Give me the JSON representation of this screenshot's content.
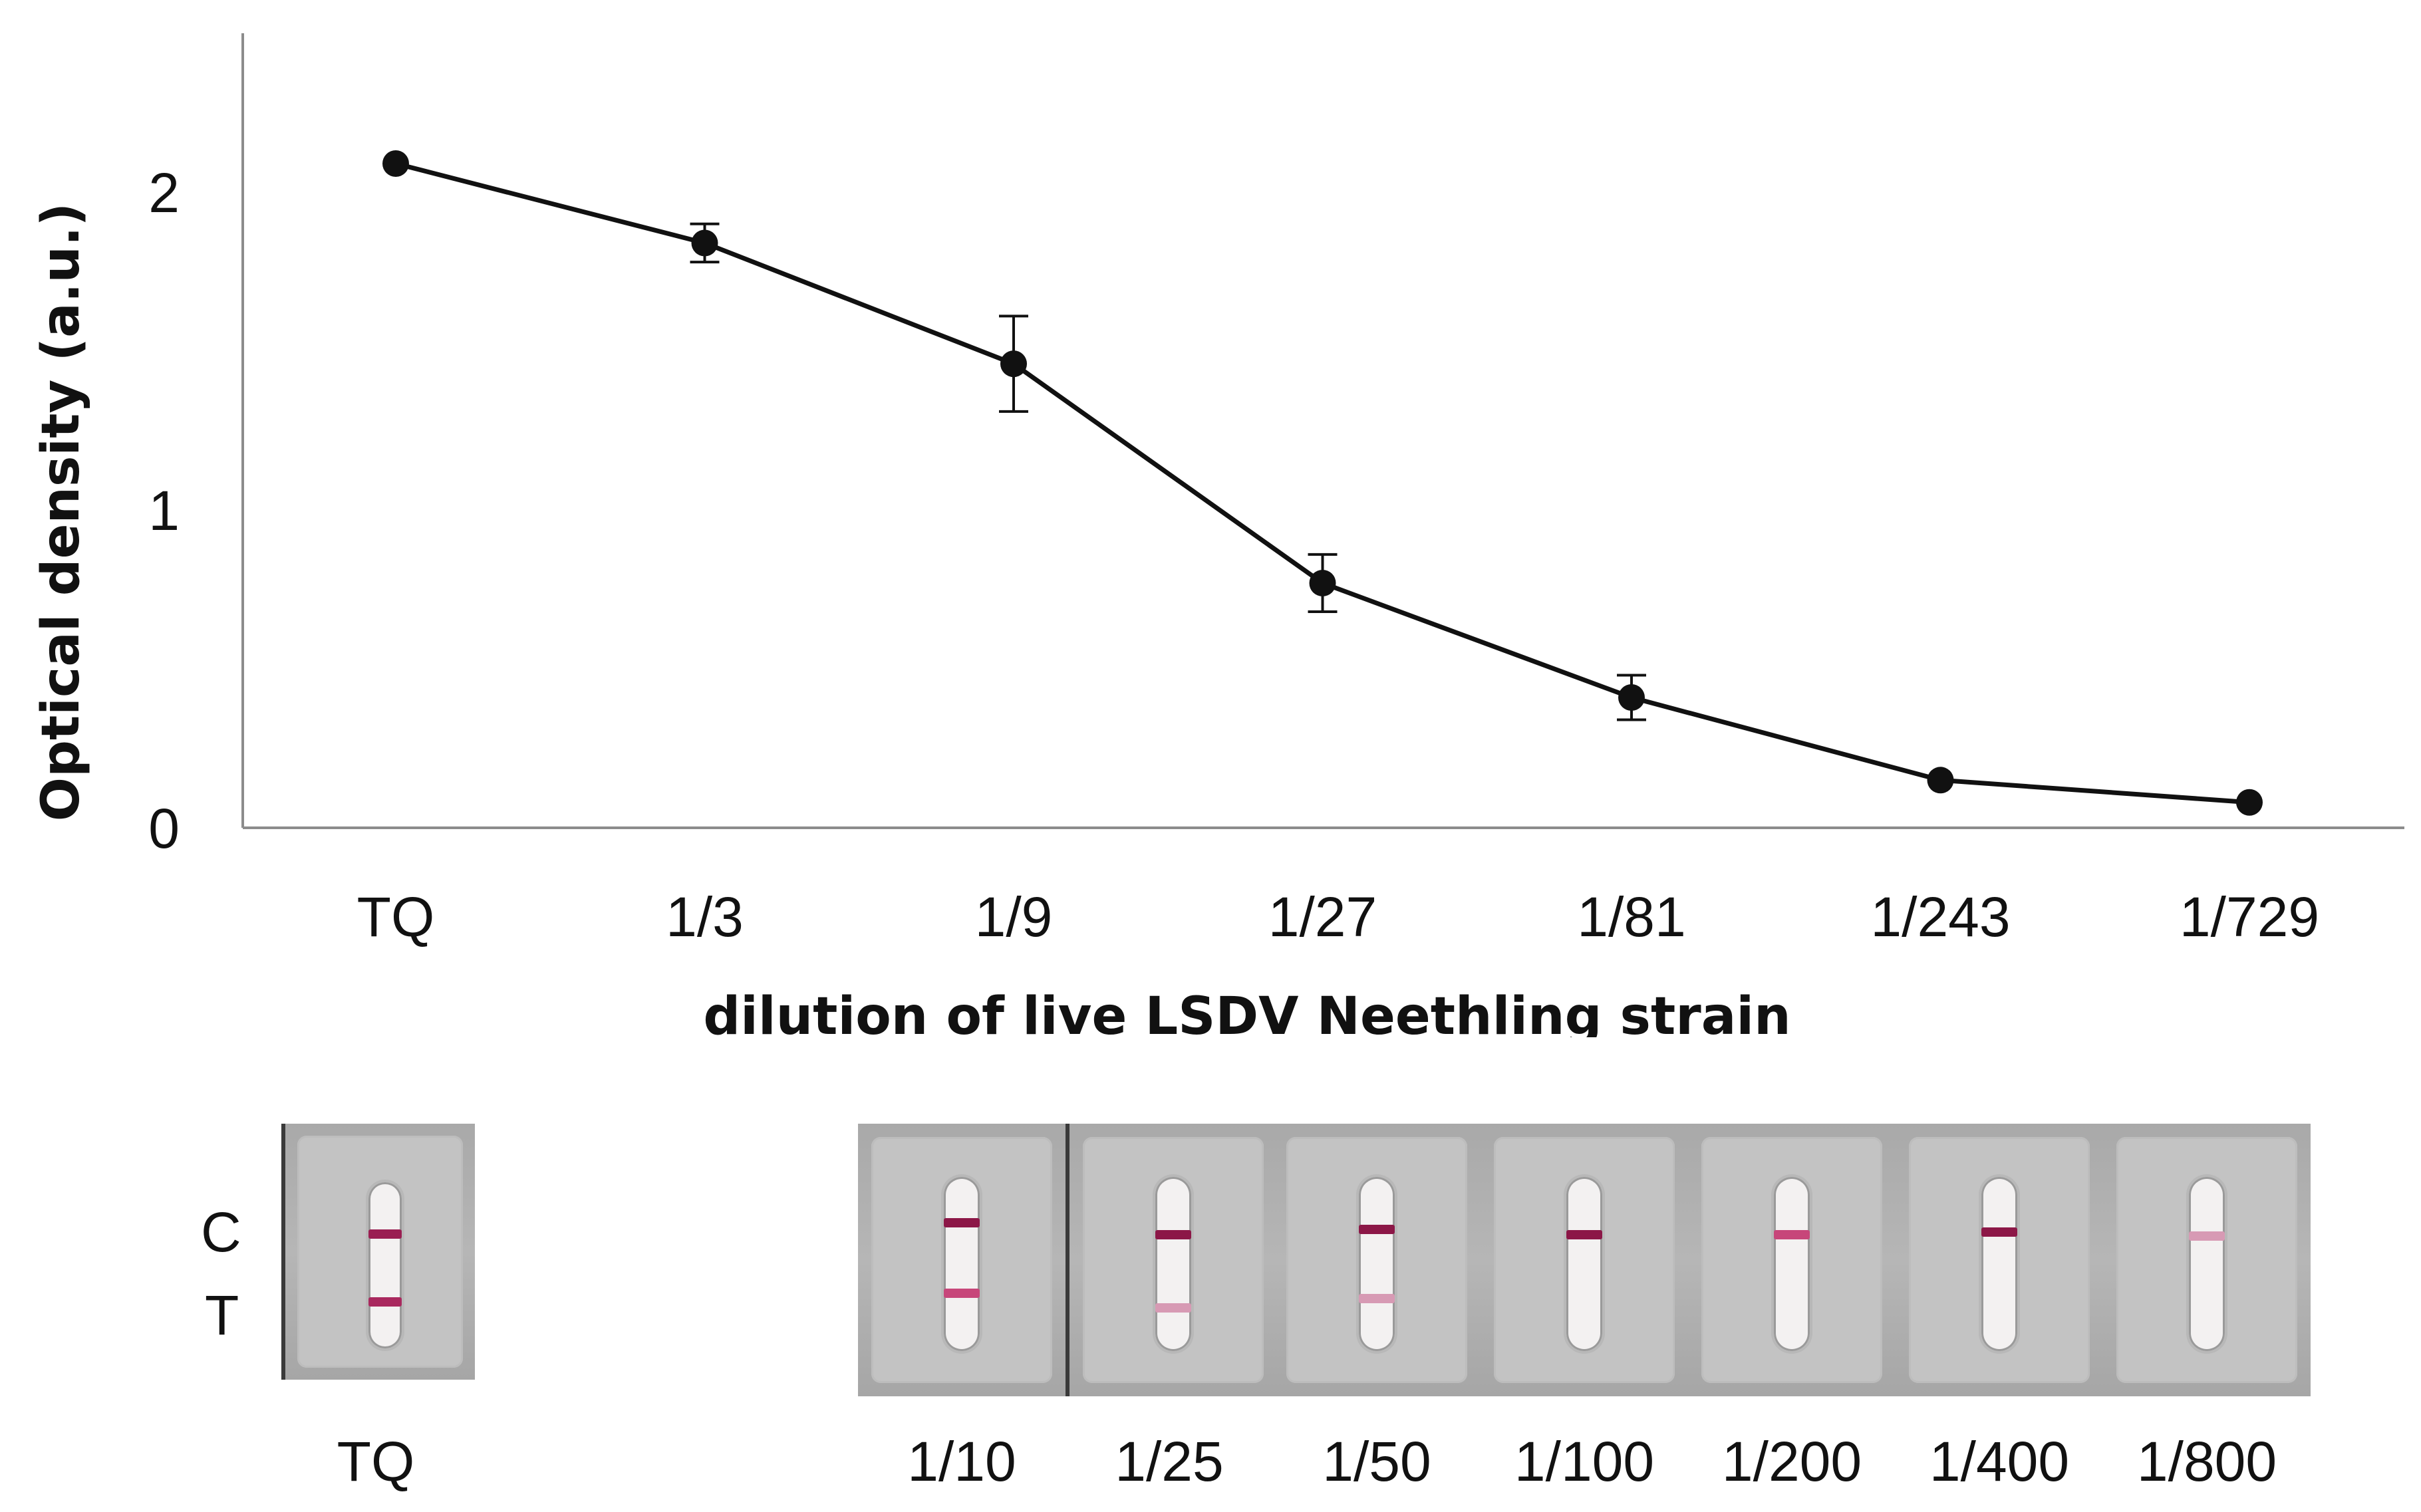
{
  "chart_data": {
    "type": "line",
    "categories": [
      "TQ",
      "1/3",
      "1/9",
      "1/27",
      "1/81",
      "1/243",
      "1/729"
    ],
    "series": [
      {
        "name": "Optical density",
        "values": [
          2.09,
          1.84,
          1.46,
          0.77,
          0.41,
          0.15,
          0.08
        ],
        "errors": [
          0.0,
          0.06,
          0.15,
          0.09,
          0.07,
          0.0,
          0.0
        ]
      }
    ],
    "yticks": [
      0,
      1,
      2
    ],
    "ylim": [
      0,
      2.5
    ],
    "xlabel": "dilution of live LSDV Neethling strain",
    "ylabel": "Optical density (a.u.)",
    "grid": false,
    "legend": "none"
  },
  "strips": {
    "row_labels": {
      "control": "C",
      "test": "T"
    },
    "reference": {
      "label": "TQ"
    },
    "dilutions": [
      {
        "label": "1/10"
      },
      {
        "label": "1/25"
      },
      {
        "label": "1/50"
      },
      {
        "label": "1/100"
      },
      {
        "label": "1/200"
      },
      {
        "label": "1/400"
      },
      {
        "label": "1/800"
      }
    ]
  },
  "colors": {
    "line": "#111111",
    "axis": "#8c8c8c",
    "band_dark": "#8c1747",
    "band_light": "#c7467a",
    "band_faint": "#d79ab4"
  }
}
